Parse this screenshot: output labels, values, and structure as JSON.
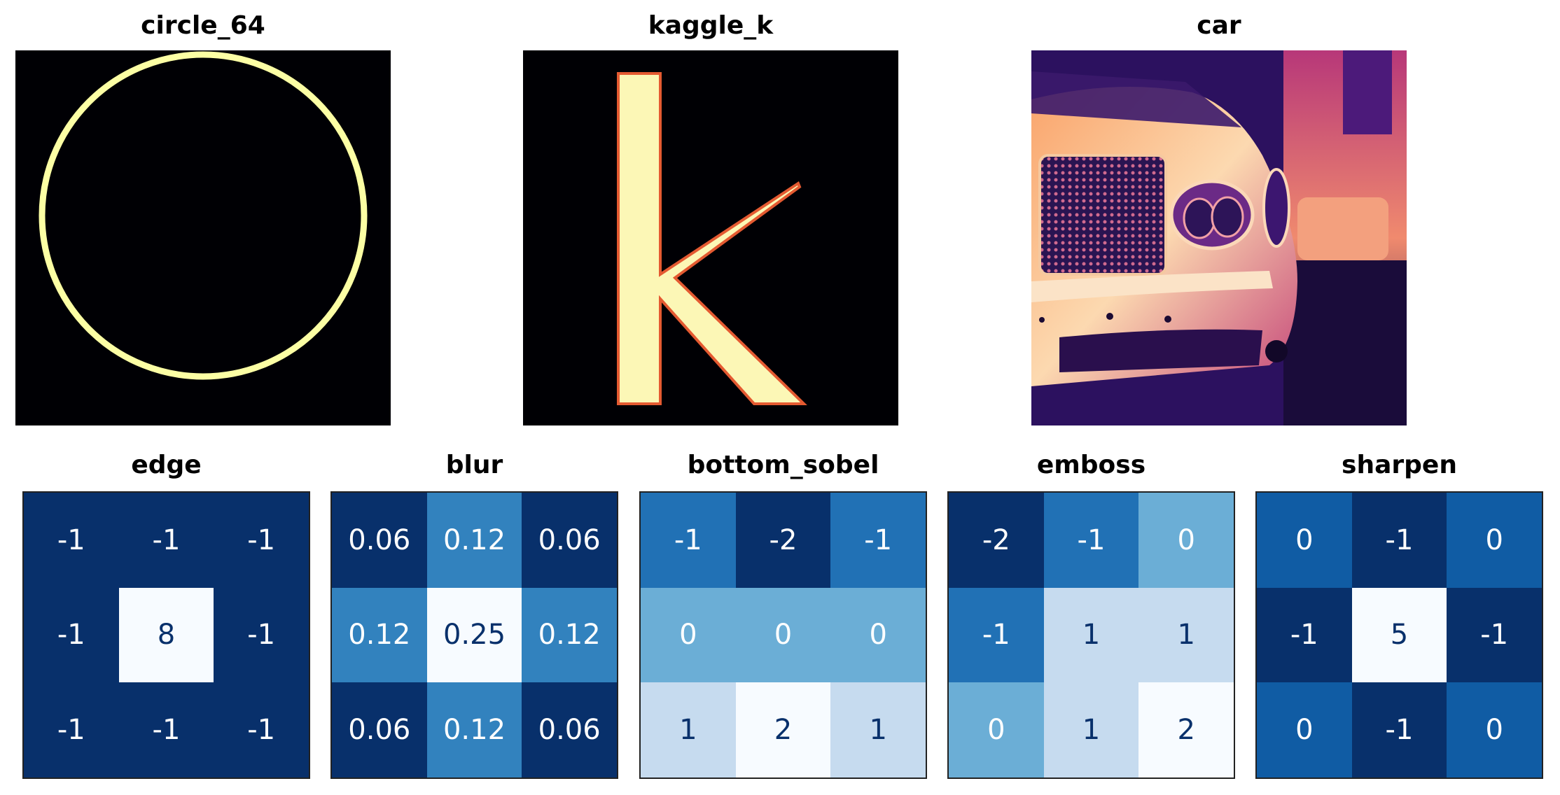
{
  "colors": {
    "image_background": "#000004",
    "circle_stroke": "#fcffa4",
    "letter_fill": "#fcf7b6",
    "letter_edge": "#e45a31",
    "blues_dark": "#08306b",
    "blues_light": "#f7fbff",
    "text_on_dark": "#ffffff",
    "text_on_light": "#08306b"
  },
  "chart_data": [
    {
      "type": "image",
      "title": "circle_64",
      "colormap": "magma",
      "content": "circle"
    },
    {
      "type": "image",
      "title": "kaggle_k",
      "colormap": "magma",
      "content": "letter k"
    },
    {
      "type": "image",
      "title": "car",
      "colormap": "magma",
      "content": "car photo"
    },
    {
      "type": "heatmap",
      "title": "edge",
      "colormap": "Blues",
      "values": [
        [
          "-1",
          "-1",
          "-1"
        ],
        [
          "-1",
          "8",
          "-1"
        ],
        [
          "-1",
          "-1",
          "-1"
        ]
      ]
    },
    {
      "type": "heatmap",
      "title": "blur",
      "colormap": "Blues",
      "values": [
        [
          "0.06",
          "0.12",
          "0.06"
        ],
        [
          "0.12",
          "0.25",
          "0.12"
        ],
        [
          "0.06",
          "0.12",
          "0.06"
        ]
      ]
    },
    {
      "type": "heatmap",
      "title": "bottom_sobel",
      "colormap": "Blues",
      "values": [
        [
          "-1",
          "-2",
          "-1"
        ],
        [
          "0",
          "0",
          "0"
        ],
        [
          "1",
          "2",
          "1"
        ]
      ]
    },
    {
      "type": "heatmap",
      "title": "emboss",
      "colormap": "Blues",
      "values": [
        [
          "-2",
          "-1",
          "0"
        ],
        [
          "-1",
          "1",
          "1"
        ],
        [
          "0",
          "1",
          "2"
        ]
      ]
    },
    {
      "type": "heatmap",
      "title": "sharpen",
      "colormap": "Blues",
      "values": [
        [
          "0",
          "-1",
          "0"
        ],
        [
          "-1",
          "5",
          "-1"
        ],
        [
          "0",
          "-1",
          "0"
        ]
      ]
    }
  ]
}
